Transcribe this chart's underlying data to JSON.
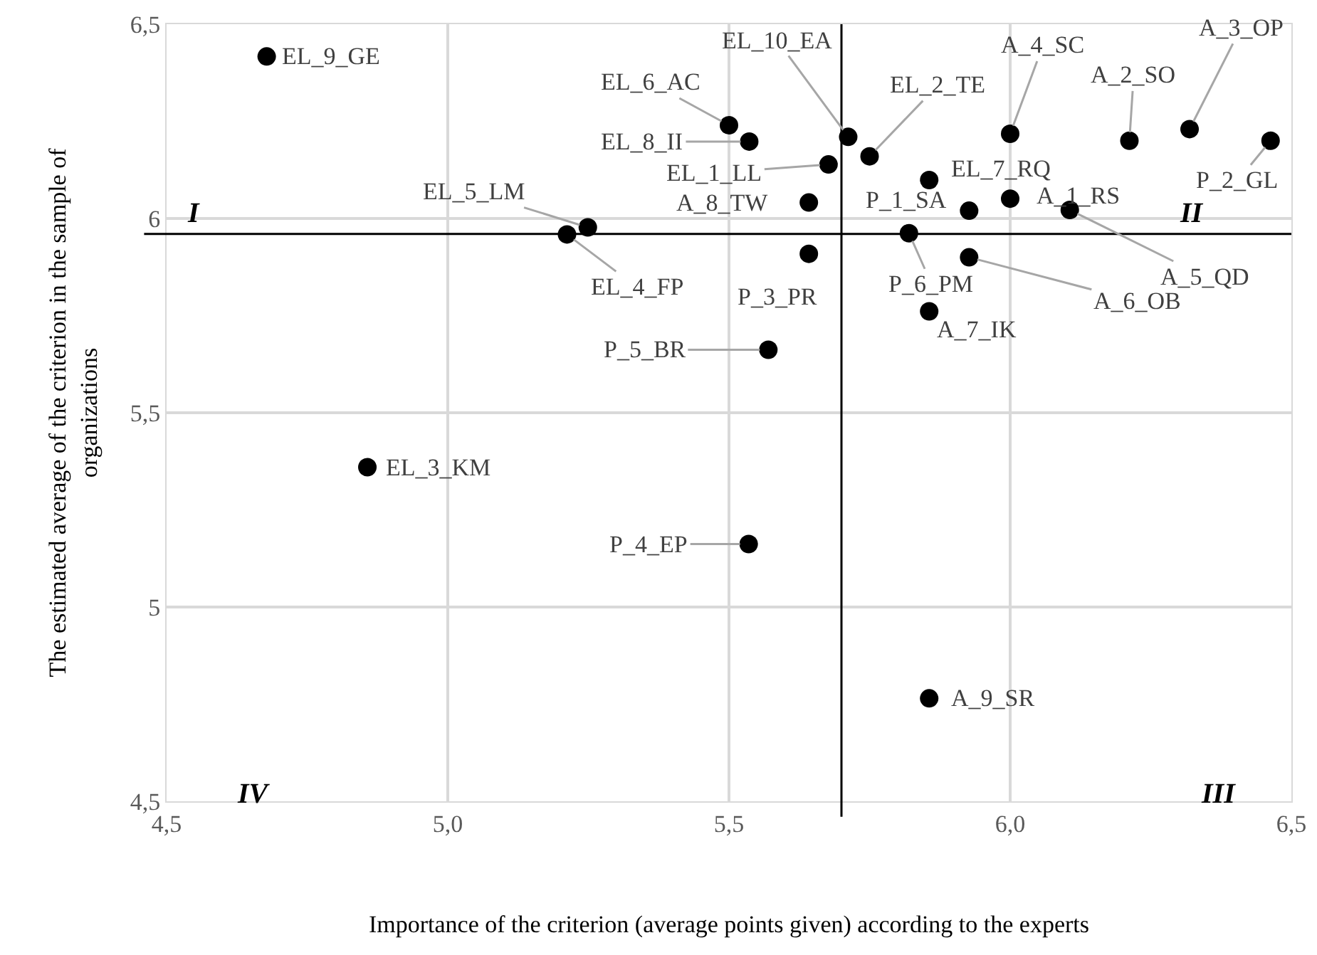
{
  "chart_data": {
    "type": "scatter",
    "xlabel": "Importance of the criterion (average points given) according to the experts",
    "ylabel": "The estimated average of the criterion in the sample of organizations",
    "x": [
      4.678,
      5.5,
      5.536,
      5.677,
      5.712,
      5.75,
      6.0,
      6.212,
      6.319,
      6.463,
      5.856,
      5.927,
      6.0,
      6.106,
      5.82,
      5.927,
      5.856,
      5.642,
      5.642,
      5.57,
      5.535,
      4.857,
      5.249,
      5.212,
      5.856
    ],
    "series": [
      {
        "color": "#000000",
        "values": [
          6.417,
          6.24,
          6.198,
          6.139,
          6.21,
          6.16,
          6.218,
          6.2,
          6.23,
          6.2,
          6.099,
          6.02,
          6.051,
          6.022,
          5.962,
          5.9,
          5.761,
          6.041,
          5.909,
          5.662,
          5.162,
          5.36,
          5.977,
          5.959,
          4.765
        ]
      }
    ],
    "marker": "circle",
    "grid": true,
    "xlim": [
      4.5,
      6.5
    ],
    "xticks": [
      {
        "value": 4.5,
        "label": "4,5"
      },
      {
        "value": 5.0,
        "label": "5,0"
      },
      {
        "value": 5.5,
        "label": "5,5"
      },
      {
        "value": 6.0,
        "label": "6,0"
      },
      {
        "value": 6.5,
        "label": "6,5"
      }
    ],
    "ylim": [
      4.5,
      6.5
    ],
    "yticks": [
      {
        "value": 4.5,
        "label": "4,5"
      },
      5,
      {
        "value": 5.5,
        "label": "5,5"
      },
      6,
      {
        "value": 6.5,
        "label": "6,5"
      }
    ],
    "ref_lines": [
      {
        "axis": "x",
        "value": 5.7,
        "color": "#000000"
      },
      {
        "axis": "y",
        "value": 5.96,
        "color": "#000000"
      }
    ],
    "annotations": [
      {
        "text": "EL_9_GE",
        "x": 4.678,
        "y": 6.417
      },
      {
        "text": "EL_6_AC",
        "x": 5.5,
        "y": 6.24
      },
      {
        "text": "EL_8_II",
        "x": 5.536,
        "y": 6.198
      },
      {
        "text": "EL_1_LL",
        "x": 5.677,
        "y": 6.139
      },
      {
        "text": "EL_10_EA",
        "x": 5.712,
        "y": 6.21
      },
      {
        "text": "EL_2_TE",
        "x": 5.75,
        "y": 6.16
      },
      {
        "text": "A_4_SC",
        "x": 6.0,
        "y": 6.218
      },
      {
        "text": "A_2_SO",
        "x": 6.212,
        "y": 6.2
      },
      {
        "text": "A_3_OP",
        "x": 6.319,
        "y": 6.23
      },
      {
        "text": "P_2_GL",
        "x": 6.463,
        "y": 6.2
      },
      {
        "text": "EL_7_RQ",
        "x": 5.856,
        "y": 6.099
      },
      {
        "text": "P_1_SA",
        "x": 5.927,
        "y": 6.02
      },
      {
        "text": "A_1_RS",
        "x": 6.0,
        "y": 6.051
      },
      {
        "text": "A_5_QD",
        "x": 6.106,
        "y": 6.022
      },
      {
        "text": "P_6_PM",
        "x": 5.82,
        "y": 5.962
      },
      {
        "text": "A_6_OB",
        "x": 5.927,
        "y": 5.9
      },
      {
        "text": "A_7_IK",
        "x": 5.856,
        "y": 5.761
      },
      {
        "text": "A_8_TW",
        "x": 5.642,
        "y": 6.041
      },
      {
        "text": "P_3_PR",
        "x": 5.642,
        "y": 5.909
      },
      {
        "text": "P_5_BR",
        "x": 5.57,
        "y": 5.662
      },
      {
        "text": "P_4_EP",
        "x": 5.535,
        "y": 5.162
      },
      {
        "text": "EL_3_KM",
        "x": 4.857,
        "y": 5.36
      },
      {
        "text": "EL_5_LM",
        "x": 5.249,
        "y": 5.977
      },
      {
        "text": "EL_4_FP",
        "x": 5.212,
        "y": 5.959
      },
      {
        "text": "A_9_SR",
        "x": 5.856,
        "y": 4.765
      },
      "I",
      "II",
      "III",
      "IV"
    ]
  }
}
